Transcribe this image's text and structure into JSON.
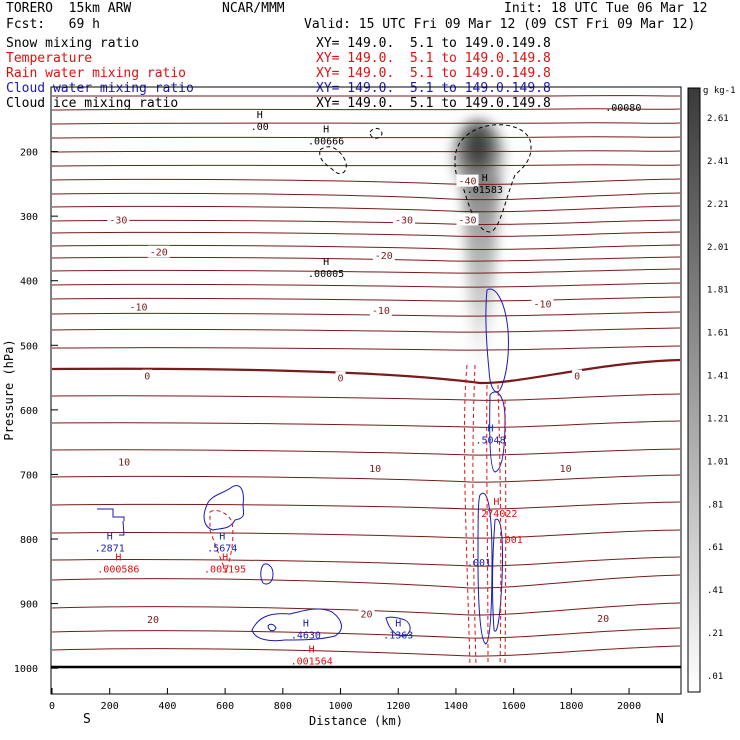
{
  "header": {
    "model": "TORERO  15km ARW",
    "center": "NCAR/MMM",
    "init": "Init: 18 UTC Tue 06 Mar 12",
    "fcst": "Fcst:   69 h",
    "valid": "Valid: 15 UTC Fri 09 Mar 12 (09 CST Fri 09 Mar 12)"
  },
  "fields": [
    {
      "name": "Snow mixing ratio",
      "xy": "XY= 149.0.  5.1 to 149.0.149.8",
      "color": "#000000"
    },
    {
      "name": "Temperature",
      "xy": "XY= 149.0.  5.1 to 149.0.149.8",
      "color": "#e01010"
    },
    {
      "name": "Rain water mixing ratio",
      "xy": "XY= 149.0.  5.1 to 149.0.149.8",
      "color": "#e01010"
    },
    {
      "name": "Cloud water mixing ratio",
      "xy": "XY= 149.0.  5.1 to 149.0.149.8",
      "color": "#1a1ab4"
    },
    {
      "name": "Cloud ice mixing ratio",
      "xy": "XY= 149.0.  5.1 to 149.0.149.8",
      "color": "#000000"
    }
  ],
  "chart_data": {
    "type": "contour cross-section",
    "xlabel": "Distance (km)",
    "ylabel": "Pressure (hPa)",
    "xlim": [
      0,
      2180
    ],
    "ylim": [
      1040,
      100
    ],
    "x_ticks": [
      0,
      200,
      400,
      600,
      800,
      1000,
      1200,
      1400,
      1600,
      1800,
      2000
    ],
    "y_ticks": [
      200,
      300,
      400,
      500,
      600,
      700,
      800,
      900,
      1000
    ],
    "x_end_labels": {
      "left": "S",
      "right": "N"
    },
    "colorbar": {
      "unit": "g kg-1",
      "labels": [
        "2.61",
        "2.41",
        "2.21",
        "2.01",
        "1.81",
        "1.61",
        "1.41",
        "1.21",
        "1.01",
        ".81",
        ".61",
        ".41",
        ".21",
        ".01"
      ],
      "color_low": "#ffffff",
      "color_high": "#3a3a3a"
    },
    "temperature_contours": [
      {
        "value": -40,
        "label": "-40",
        "label_x": 1440,
        "label_p": 245
      },
      {
        "value": -30,
        "label": "-30",
        "label_x": 230,
        "label_p": 305
      },
      {
        "value": -30,
        "label": "-30",
        "label_x": 1220,
        "label_p": 305
      },
      {
        "value": -30,
        "label": "-30",
        "label_x": 1440,
        "label_p": 305
      },
      {
        "value": -20,
        "label": "-20",
        "label_x": 370,
        "label_p": 355
      },
      {
        "value": -20,
        "label": "-20",
        "label_x": 1150,
        "label_p": 360
      },
      {
        "value": -10,
        "label": "-10",
        "label_x": 300,
        "label_p": 440
      },
      {
        "value": -10,
        "label": "-10",
        "label_x": 1140,
        "label_p": 445
      },
      {
        "value": -10,
        "label": "-10",
        "label_x": 1700,
        "label_p": 435
      },
      {
        "value": 0,
        "label": "0",
        "label_x": 330,
        "label_p": 547
      },
      {
        "value": 0,
        "label": "0",
        "label_x": 1000,
        "label_p": 550
      },
      {
        "value": 0,
        "label": "0",
        "label_x": 1820,
        "label_p": 547
      },
      {
        "value": 10,
        "label": "10",
        "label_x": 250,
        "label_p": 680
      },
      {
        "value": 10,
        "label": "10",
        "label_x": 1120,
        "label_p": 690
      },
      {
        "value": 10,
        "label": "10",
        "label_x": 1780,
        "label_p": 690
      },
      {
        "value": 20,
        "label": "20",
        "label_x": 350,
        "label_p": 924
      },
      {
        "value": 20,
        "label": "20",
        "label_x": 1090,
        "label_p": 915
      },
      {
        "value": 20,
        "label": "20",
        "label_x": 1910,
        "label_p": 922
      }
    ],
    "extrema_labels": [
      {
        "marker": "H",
        "value": ".00",
        "field": "Snow mixing ratio",
        "x": 720,
        "p": 153
      },
      {
        "marker": "H",
        "value": ".00666",
        "field": "Snow mixing ratio",
        "x": 950,
        "p": 175
      },
      {
        "marker": "H",
        "value": ".01583",
        "field": "Snow mixing ratio",
        "x": 1500,
        "p": 250
      },
      {
        "marker": "H",
        "value": ".00005",
        "field": "Snow mixing ratio",
        "x": 950,
        "p": 380
      },
      {
        "marker": "",
        "value": ".00080",
        "field": "Cloud ice mixing ratio",
        "x": 1980,
        "p": 123
      },
      {
        "marker": "H",
        "value": ".2871",
        "field": "Cloud water mixing ratio",
        "x": 200,
        "p": 805
      },
      {
        "marker": "H",
        "value": ".000586",
        "field": "Rain water mixing ratio",
        "x": 230,
        "p": 838
      },
      {
        "marker": "H",
        "value": ".5674",
        "field": "Cloud water mixing ratio",
        "x": 590,
        "p": 805
      },
      {
        "marker": "H",
        "value": ".005195",
        "field": "Rain water mixing ratio",
        "x": 600,
        "p": 838
      },
      {
        "marker": "H",
        "value": ".4630",
        "field": "Cloud water mixing ratio",
        "x": 880,
        "p": 940
      },
      {
        "marker": "H",
        "value": ".001564",
        "field": "Rain water mixing ratio",
        "x": 900,
        "p": 980
      },
      {
        "marker": "H",
        "value": ".1363",
        "field": "Cloud water mixing ratio",
        "x": 1200,
        "p": 940
      },
      {
        "marker": "H",
        "value": ".5048",
        "field": "Cloud water mixing ratio",
        "x": 1520,
        "p": 638
      },
      {
        "marker": "H",
        "value": ".274022",
        "field": "Rain water mixing ratio",
        "x": 1540,
        "p": 752
      },
      {
        "marker": "",
        "value": ".001",
        "field": "Rain water mixing ratio",
        "x": 1590,
        "p": 792
      },
      {
        "marker": "",
        "value": ".001",
        "field": "Cloud water mixing ratio",
        "x": 1480,
        "p": 828
      }
    ]
  }
}
